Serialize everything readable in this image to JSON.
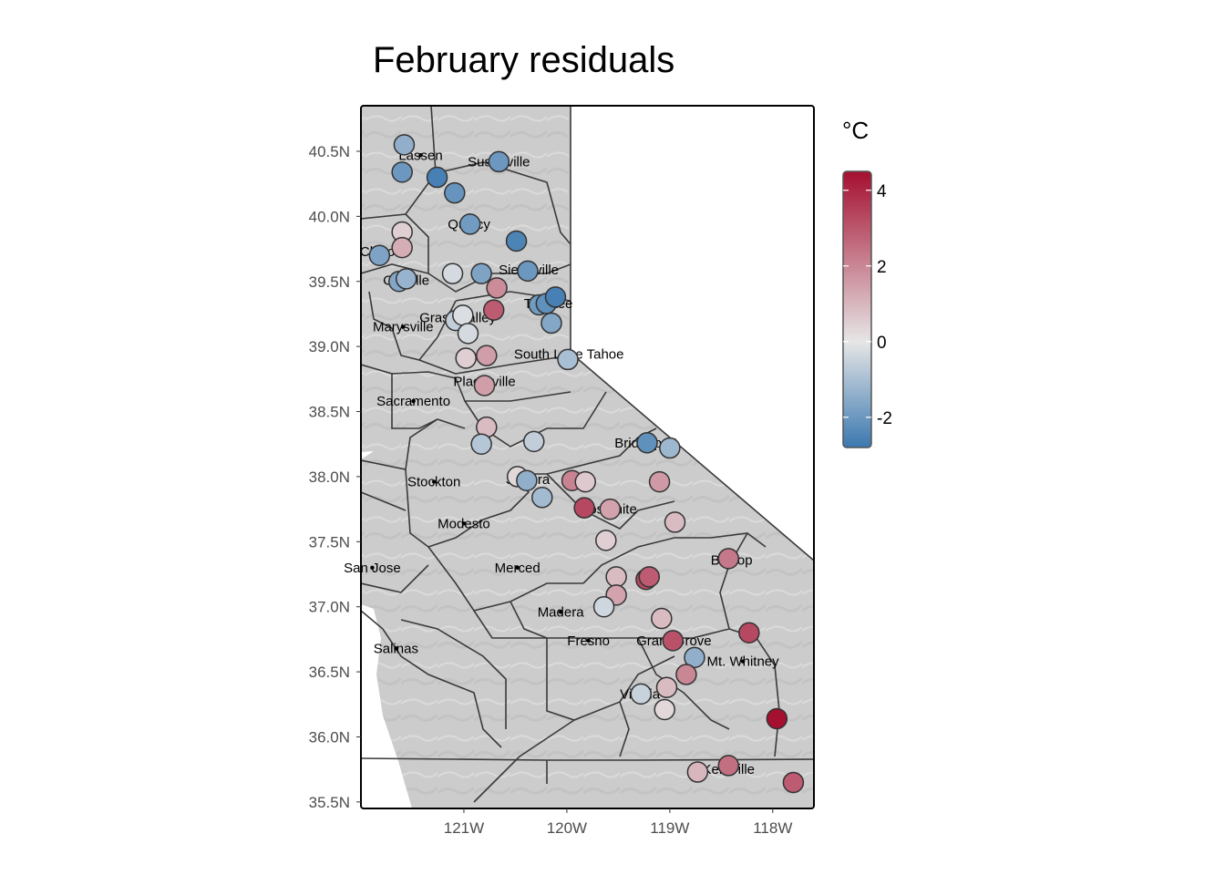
{
  "title": "February residuals",
  "chart_data": {
    "type": "scatter",
    "xlim": [
      -122.0,
      -117.6
    ],
    "ylim": [
      35.45,
      40.85
    ],
    "x_ticks": [
      {
        "value": -121,
        "label": "121W"
      },
      {
        "value": -120,
        "label": "120W"
      },
      {
        "value": -119,
        "label": "119W"
      },
      {
        "value": -118,
        "label": "118W"
      }
    ],
    "y_ticks": [
      {
        "value": 35.5,
        "label": "35.5N"
      },
      {
        "value": 36.0,
        "label": "36.0N"
      },
      {
        "value": 36.5,
        "label": "36.5N"
      },
      {
        "value": 37.0,
        "label": "37.0N"
      },
      {
        "value": 37.5,
        "label": "37.5N"
      },
      {
        "value": 38.0,
        "label": "38.0N"
      },
      {
        "value": 38.5,
        "label": "38.5N"
      },
      {
        "value": 39.0,
        "label": "39.0N"
      },
      {
        "value": 39.5,
        "label": "39.5N"
      },
      {
        "value": 40.0,
        "label": "40.0N"
      },
      {
        "value": 40.5,
        "label": "40.5N"
      }
    ],
    "legend": {
      "title": "°C",
      "min": -2.8,
      "max": 4.5,
      "ticks": [
        -2,
        0,
        2,
        4
      ],
      "tick_labels": [
        "-2",
        "0",
        "2",
        "4"
      ],
      "low_color": "#3b78b0",
      "mid_color": "#e6e6e6",
      "high_color": "#a50f30",
      "placement": "right"
    },
    "background_color": "#cccccc",
    "towns": [
      {
        "name": "Lassen",
        "lon": -121.42,
        "lat": 40.47
      },
      {
        "name": "Susanville",
        "lon": -120.66,
        "lat": 40.42
      },
      {
        "name": "Quincy",
        "lon": -120.95,
        "lat": 39.94
      },
      {
        "name": "Chico",
        "lon": -121.84,
        "lat": 39.73
      },
      {
        "name": "Oroville",
        "lon": -121.56,
        "lat": 39.51
      },
      {
        "name": "Sierraville",
        "lon": -120.37,
        "lat": 39.59
      },
      {
        "name": "Truckee",
        "lon": -120.18,
        "lat": 39.33
      },
      {
        "name": "Grass Valley",
        "lon": -121.06,
        "lat": 39.22
      },
      {
        "name": "Marysville",
        "lon": -121.59,
        "lat": 39.15
      },
      {
        "name": "South Lake Tahoe",
        "lon": -119.98,
        "lat": 38.94
      },
      {
        "name": "Placerville",
        "lon": -120.8,
        "lat": 38.73
      },
      {
        "name": "Sacramento",
        "lon": -121.49,
        "lat": 38.58
      },
      {
        "name": "Bridgeport",
        "lon": -119.23,
        "lat": 38.26
      },
      {
        "name": "Stockton",
        "lon": -121.29,
        "lat": 37.96
      },
      {
        "name": "Sonora",
        "lon": -120.38,
        "lat": 37.98
      },
      {
        "name": "Yosemite",
        "lon": -119.59,
        "lat": 37.75
      },
      {
        "name": "Modesto",
        "lon": -121.0,
        "lat": 37.64
      },
      {
        "name": "Bishop",
        "lon": -118.4,
        "lat": 37.36
      },
      {
        "name": "San Jose",
        "lon": -121.89,
        "lat": 37.3
      },
      {
        "name": "Merced",
        "lon": -120.48,
        "lat": 37.3
      },
      {
        "name": "Madera",
        "lon": -120.06,
        "lat": 36.96
      },
      {
        "name": "Fresno",
        "lon": -119.79,
        "lat": 36.74
      },
      {
        "name": "Grant Grove",
        "lon": -118.96,
        "lat": 36.74
      },
      {
        "name": "Salinas",
        "lon": -121.66,
        "lat": 36.68
      },
      {
        "name": "Mt. Whitney",
        "lon": -118.29,
        "lat": 36.58
      },
      {
        "name": "Visalia",
        "lon": -119.29,
        "lat": 36.33
      },
      {
        "name": "Kernville",
        "lon": -118.43,
        "lat": 35.75
      }
    ],
    "stations": [
      {
        "lon": -121.58,
        "lat": 40.55,
        "value": -1.4
      },
      {
        "lon": -121.6,
        "lat": 40.34,
        "value": -2.0
      },
      {
        "lon": -121.26,
        "lat": 40.3,
        "value": -2.6
      },
      {
        "lon": -120.66,
        "lat": 40.42,
        "value": -2.0
      },
      {
        "lon": -121.09,
        "lat": 40.18,
        "value": -2.1
      },
      {
        "lon": -120.94,
        "lat": 39.94,
        "value": -1.9
      },
      {
        "lon": -120.49,
        "lat": 39.81,
        "value": -2.5
      },
      {
        "lon": -121.6,
        "lat": 39.88,
        "value": 0.5
      },
      {
        "lon": -121.6,
        "lat": 39.76,
        "value": 1.2
      },
      {
        "lon": -121.82,
        "lat": 39.7,
        "value": -1.7
      },
      {
        "lon": -121.63,
        "lat": 39.5,
        "value": -1.6
      },
      {
        "lon": -121.56,
        "lat": 39.52,
        "value": -1.3
      },
      {
        "lon": -121.11,
        "lat": 39.56,
        "value": -0.3
      },
      {
        "lon": -120.83,
        "lat": 39.56,
        "value": -1.7
      },
      {
        "lon": -120.38,
        "lat": 39.58,
        "value": -2.0
      },
      {
        "lon": -120.68,
        "lat": 39.45,
        "value": 1.9
      },
      {
        "lon": -120.71,
        "lat": 39.28,
        "value": 2.9
      },
      {
        "lon": -120.27,
        "lat": 39.32,
        "value": -1.9
      },
      {
        "lon": -120.2,
        "lat": 39.33,
        "value": -2.2
      },
      {
        "lon": -120.11,
        "lat": 39.38,
        "value": -2.6
      },
      {
        "lon": -120.15,
        "lat": 39.18,
        "value": -1.6
      },
      {
        "lon": -121.08,
        "lat": 39.2,
        "value": -0.6
      },
      {
        "lon": -121.01,
        "lat": 39.24,
        "value": -0.2
      },
      {
        "lon": -120.96,
        "lat": 39.1,
        "value": -0.3
      },
      {
        "lon": -120.98,
        "lat": 38.91,
        "value": 0.5
      },
      {
        "lon": -120.78,
        "lat": 38.93,
        "value": 1.5
      },
      {
        "lon": -119.99,
        "lat": 38.9,
        "value": -1.0
      },
      {
        "lon": -120.8,
        "lat": 38.7,
        "value": 1.5
      },
      {
        "lon": -120.78,
        "lat": 38.38,
        "value": 0.9
      },
      {
        "lon": -120.83,
        "lat": 38.25,
        "value": -0.8
      },
      {
        "lon": -120.32,
        "lat": 38.27,
        "value": -0.6
      },
      {
        "lon": -119.22,
        "lat": 38.26,
        "value": -2.2
      },
      {
        "lon": -119.0,
        "lat": 38.22,
        "value": -1.2
      },
      {
        "lon": -120.48,
        "lat": 38.0,
        "value": 0.3
      },
      {
        "lon": -120.39,
        "lat": 37.97,
        "value": -1.4
      },
      {
        "lon": -119.95,
        "lat": 37.97,
        "value": 2.1
      },
      {
        "lon": -119.82,
        "lat": 37.96,
        "value": 0.6
      },
      {
        "lon": -120.24,
        "lat": 37.84,
        "value": -1.1
      },
      {
        "lon": -119.1,
        "lat": 37.96,
        "value": 1.6
      },
      {
        "lon": -119.83,
        "lat": 37.76,
        "value": 3.3
      },
      {
        "lon": -119.58,
        "lat": 37.75,
        "value": 1.4
      },
      {
        "lon": -118.95,
        "lat": 37.65,
        "value": 0.9
      },
      {
        "lon": -119.62,
        "lat": 37.51,
        "value": 0.5
      },
      {
        "lon": -118.43,
        "lat": 37.37,
        "value": 2.3
      },
      {
        "lon": -119.52,
        "lat": 37.23,
        "value": 0.9
      },
      {
        "lon": -119.23,
        "lat": 37.21,
        "value": 3.3
      },
      {
        "lon": -119.2,
        "lat": 37.23,
        "value": 2.9
      },
      {
        "lon": -119.52,
        "lat": 37.09,
        "value": 1.4
      },
      {
        "lon": -119.64,
        "lat": 37.0,
        "value": -0.4
      },
      {
        "lon": -119.08,
        "lat": 36.91,
        "value": 0.9
      },
      {
        "lon": -118.23,
        "lat": 36.8,
        "value": 3.3
      },
      {
        "lon": -118.97,
        "lat": 36.74,
        "value": 3.1
      },
      {
        "lon": -118.76,
        "lat": 36.61,
        "value": -1.4
      },
      {
        "lon": -118.84,
        "lat": 36.48,
        "value": 2.0
      },
      {
        "lon": -119.03,
        "lat": 36.38,
        "value": 0.9
      },
      {
        "lon": -119.28,
        "lat": 36.33,
        "value": -0.5
      },
      {
        "lon": -119.05,
        "lat": 36.21,
        "value": 0.3
      },
      {
        "lon": -117.96,
        "lat": 36.14,
        "value": 4.5
      },
      {
        "lon": -118.43,
        "lat": 35.78,
        "value": 2.5
      },
      {
        "lon": -118.73,
        "lat": 35.73,
        "value": 1.0
      },
      {
        "lon": -117.8,
        "lat": 35.65,
        "value": 2.9
      }
    ]
  }
}
